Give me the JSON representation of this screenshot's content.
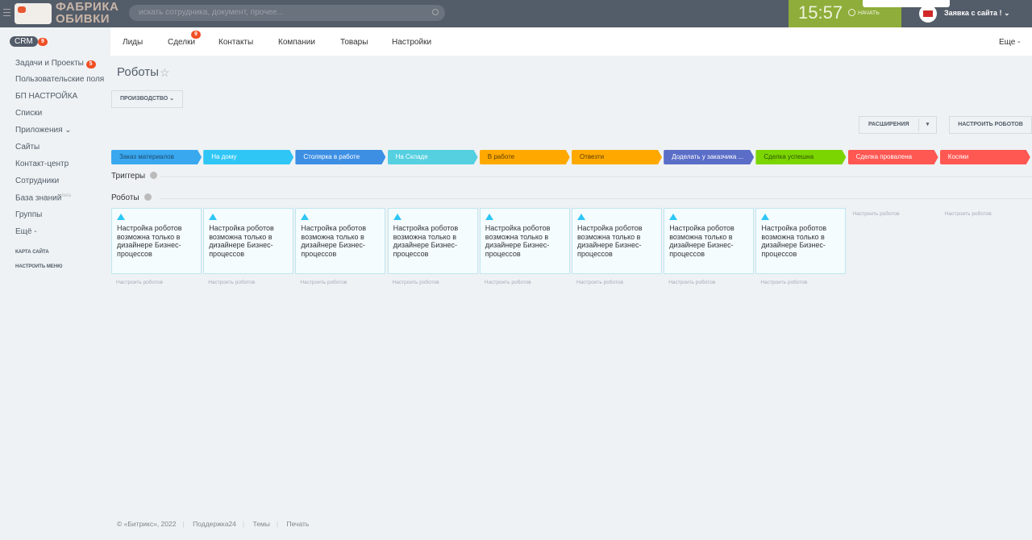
{
  "header": {
    "logo_text_1": "ФАБРИКА",
    "logo_text_2": "ОБИВКИ",
    "search_placeholder": "искать сотрудника, документ, прочее...",
    "clock": "15:57",
    "start_label": "НАЧАТЬ",
    "user_name": "Заявка с сайта !"
  },
  "nav": {
    "items": [
      "Лиды",
      "Сделки",
      "Контакты",
      "Компании",
      "Товары",
      "Настройки"
    ],
    "deals_badge": "9",
    "more": "Еще -"
  },
  "sidebar": {
    "crm": "CRM",
    "crm_badge": "9",
    "items": [
      "Задачи и Проекты",
      "Пользовательские поля",
      "БП НАСТРОЙКА",
      "Списки",
      "Приложения ⌄",
      "Сайты",
      "Контакт-центр",
      "Сотрудники",
      "База знаний",
      "Группы",
      "Ещё -"
    ],
    "tasks_badge": "5",
    "beta": "beta",
    "sitemap": "КАРТА САЙТА",
    "menu_setup": "НАСТРОИТЬ МЕНЮ"
  },
  "page": {
    "title": "Роботы",
    "filter": "ПРОИЗВОДСТВО",
    "extensions": "РАСШИРЕНИЯ",
    "setup_robots": "НАСТРОИТЬ РОБОТОВ",
    "triggers": "Триггеры",
    "robots": "Роботы",
    "card_text": "Настройка роботов возможна только в дизайнере Бизнес-процессов",
    "configure": "Настроить роботов"
  },
  "stages": [
    {
      "name": "Заказ материалов",
      "color": "#39a8ef",
      "text": "#1e4a6e"
    },
    {
      "name": "На дому",
      "color": "#2fc6f6",
      "text": "#fff"
    },
    {
      "name": "Столярка в работе",
      "color": "#3d8fe4",
      "text": "#fff"
    },
    {
      "name": "На Складе",
      "color": "#55d0e0",
      "text": "#fff"
    },
    {
      "name": "В работе",
      "color": "#ffa900",
      "text": "#5a3c00"
    },
    {
      "name": "Отвезти",
      "color": "#ffa900",
      "text": "#5a3c00"
    },
    {
      "name": "Доделать у заказчика ...",
      "color": "#5a6dc7",
      "text": "#fff"
    },
    {
      "name": "Сделка успешна",
      "color": "#7bd500",
      "text": "#2f5200"
    },
    {
      "name": "Сделка провалена",
      "color": "#ff5752",
      "text": "#fff"
    },
    {
      "name": "Коcяки",
      "color": "#ff5752",
      "text": "#fff"
    }
  ],
  "footer": {
    "copyright": "© «Битрикс», 2022",
    "support": "Поддержка24",
    "themes": "Темы",
    "print": "Печать"
  }
}
